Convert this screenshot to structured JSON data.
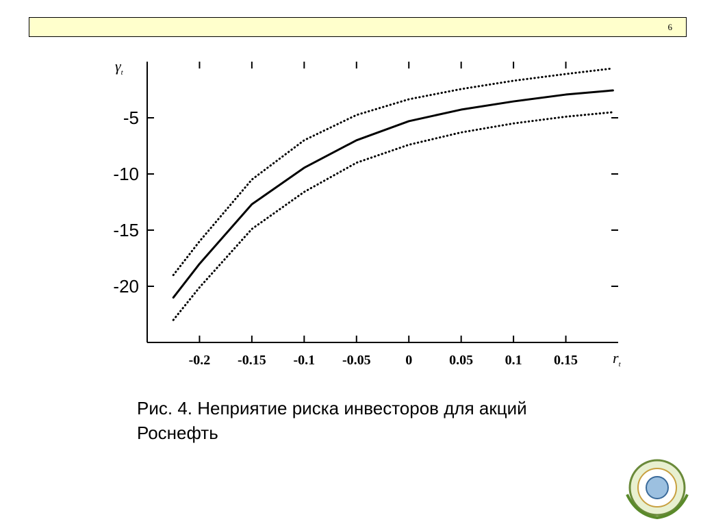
{
  "page_number": "6",
  "chart_data": {
    "type": "line",
    "ylabel": {
      "main": "γ",
      "sub": "t"
    },
    "xlabel": {
      "main": "r",
      "sub": "t"
    },
    "x": [
      -0.225,
      -0.2,
      -0.15,
      -0.1,
      -0.05,
      0,
      0.05,
      0.1,
      0.15,
      0.195
    ],
    "series": [
      {
        "color": "#000000",
        "style": "solid",
        "values": [
          -21,
          -18,
          -12.7,
          -9.45,
          -7,
          -5.3,
          -4.27,
          -3.54,
          -2.93,
          -2.56
        ]
      },
      {
        "color": "#000000",
        "style": "dotted",
        "values": [
          -19,
          -16,
          -10.5,
          -7,
          -4.75,
          -3.35,
          -2.44,
          -1.7,
          -1.1,
          -0.6
        ]
      },
      {
        "color": "#000000",
        "style": "dotted",
        "values": [
          -23,
          -20.1,
          -14.9,
          -11.6,
          -9,
          -7.4,
          -6.3,
          -5.5,
          -4.9,
          -4.5
        ]
      }
    ],
    "xlim": [
      -0.25,
      0.2
    ],
    "ylim": [
      -25,
      0
    ],
    "xticks": [
      -0.2,
      -0.15,
      -0.1,
      -0.05,
      0,
      0.05,
      0.1,
      0.15
    ],
    "yticks": [
      -20,
      -15,
      -10,
      -5
    ]
  },
  "caption": [
    "Рис. 4. Неприятие риска инвесторов для акций",
    "Роснефть"
  ]
}
